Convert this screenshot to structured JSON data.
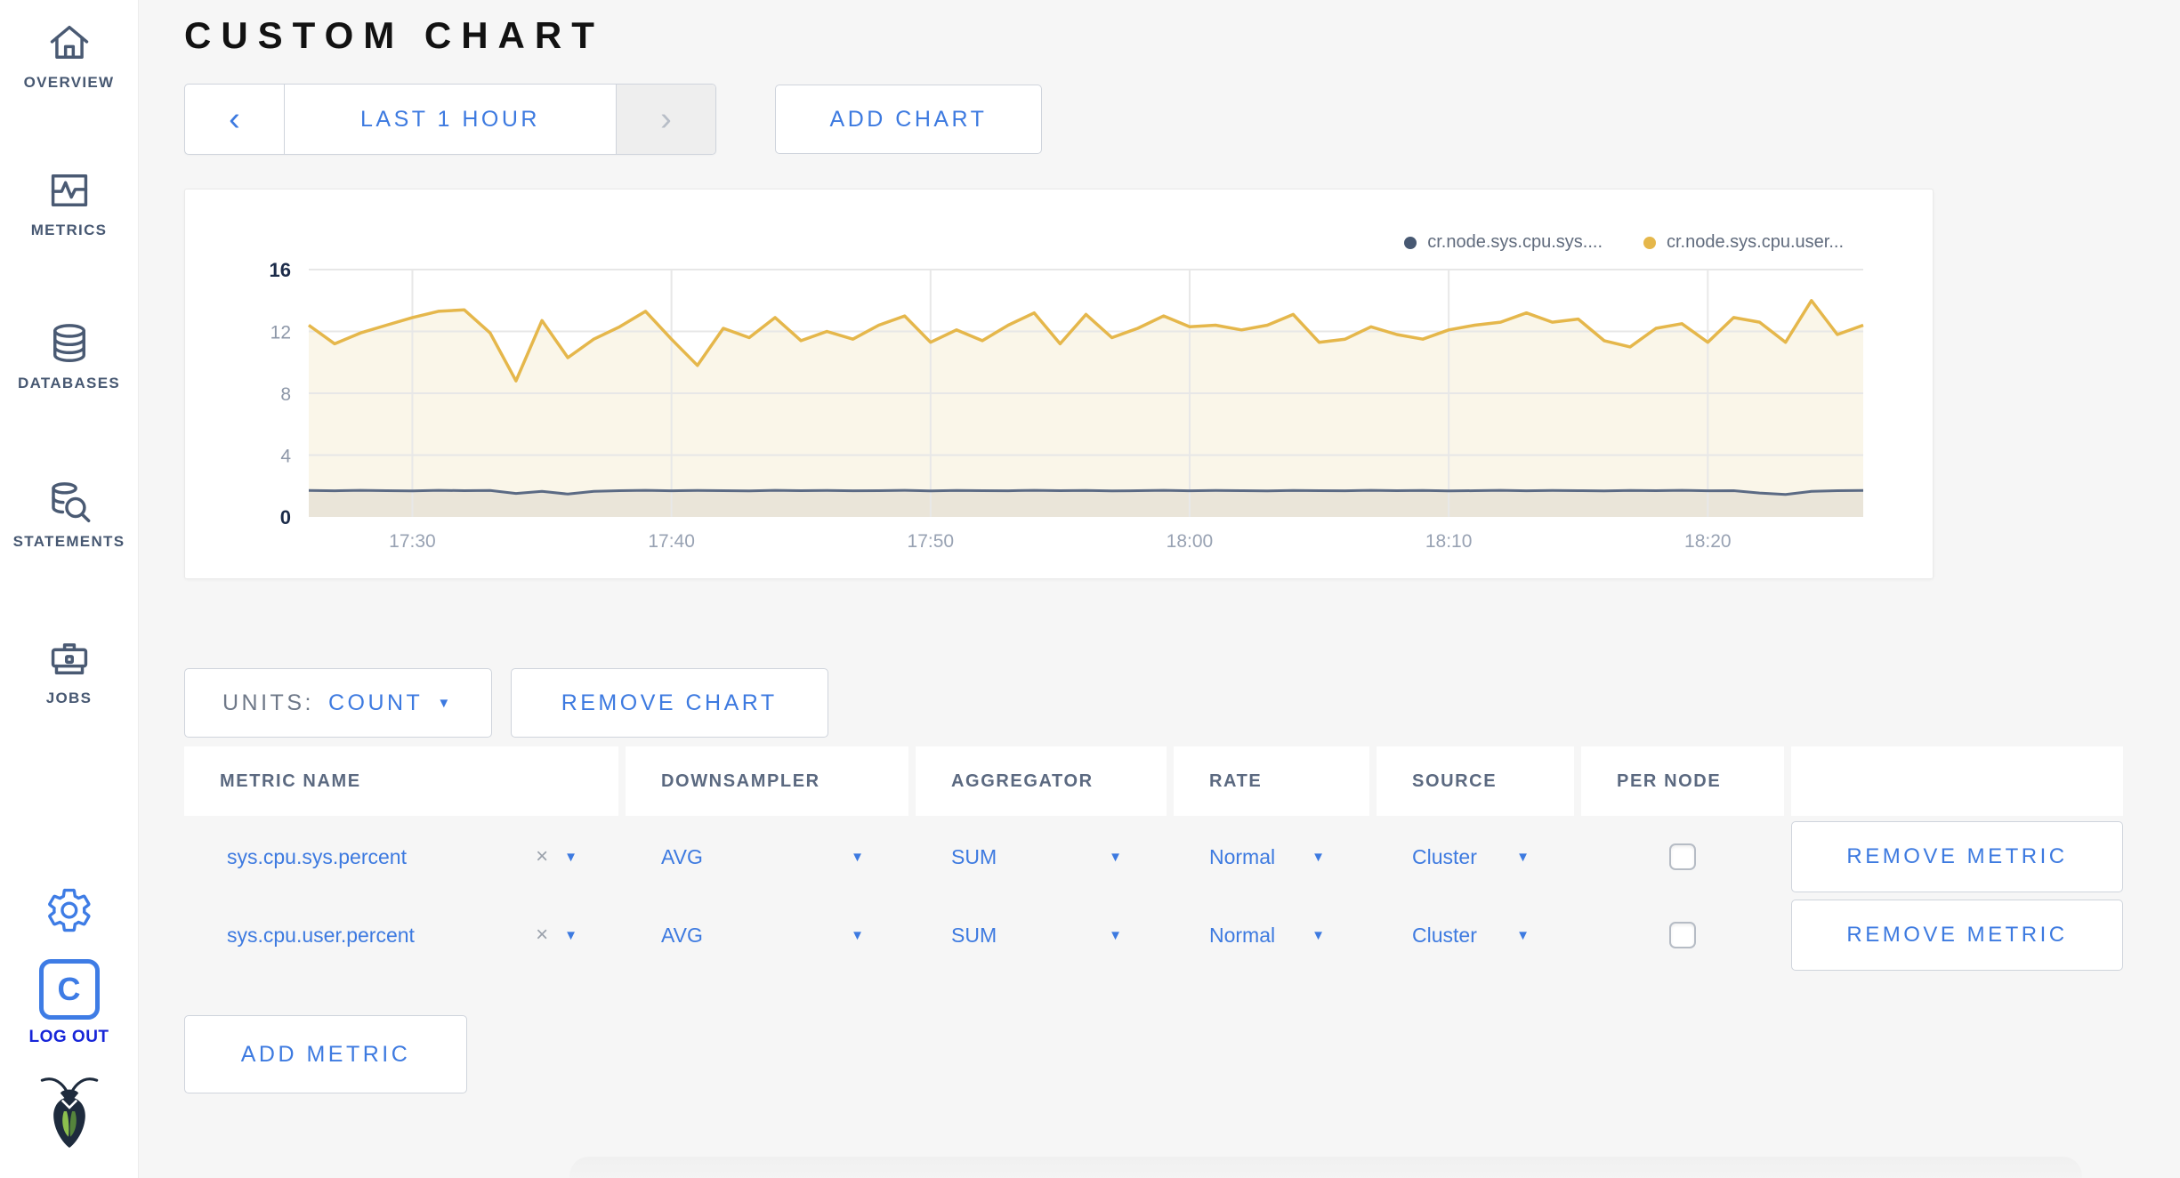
{
  "colors": {
    "accent_blue": "#3d7ae0",
    "logout_blue": "#1725d8",
    "sidebar_slate": "#475872",
    "series_user_yellow": "#e5b74b",
    "series_sys_navy": "#475872",
    "page_background": "#f6f6f6"
  },
  "icons": {
    "caret": "▼",
    "close": "×",
    "chev_left": "‹",
    "chev_right": "›"
  },
  "sidebar": {
    "items": [
      {
        "label": "OVERVIEW",
        "icon": "home-icon"
      },
      {
        "label": "METRICS",
        "icon": "metrics-graph-icon"
      },
      {
        "label": "DATABASES",
        "icon": "database-icon"
      },
      {
        "label": "STATEMENTS",
        "icon": "database-search-icon"
      },
      {
        "label": "JOBS",
        "icon": "briefcase-icon"
      }
    ],
    "logout_label": "LOG OUT"
  },
  "header": {
    "title": "CUSTOM CHART"
  },
  "toolbar": {
    "time_range_label": "LAST 1 HOUR",
    "add_chart_label": "ADD CHART"
  },
  "chart_card": {
    "legend": [
      {
        "label": "cr.node.sys.cpu.sys....",
        "color": "#475872"
      },
      {
        "label": "cr.node.sys.cpu.user...",
        "color": "#e5b74b"
      }
    ]
  },
  "chart_data": {
    "type": "area",
    "title": "",
    "xlabel": "",
    "ylabel": "",
    "ylim": [
      0,
      16
    ],
    "y_ticks": [
      0,
      4,
      8,
      12,
      16
    ],
    "x_ticks": [
      "17:30",
      "17:40",
      "17:50",
      "18:00",
      "18:10",
      "18:20"
    ],
    "tick_minutes": [
      4,
      14,
      24,
      34,
      44,
      54
    ],
    "total_minutes": 60,
    "grid": "on",
    "legend_position": "top-right",
    "series": [
      {
        "name": "cr.node.sys.cpu.sys....",
        "color": "#5b6a84",
        "fill": "#eae5d9",
        "values": [
          1.71,
          1.69,
          1.72,
          1.7,
          1.68,
          1.72,
          1.7,
          1.71,
          1.52,
          1.66,
          1.48,
          1.65,
          1.7,
          1.72,
          1.69,
          1.71,
          1.7,
          1.68,
          1.72,
          1.7,
          1.71,
          1.69,
          1.7,
          1.72,
          1.68,
          1.71,
          1.7,
          1.69,
          1.72,
          1.7,
          1.71,
          1.68,
          1.7,
          1.72,
          1.69,
          1.71,
          1.7,
          1.68,
          1.71,
          1.7,
          1.69,
          1.72,
          1.7,
          1.71,
          1.68,
          1.7,
          1.72,
          1.69,
          1.71,
          1.7,
          1.68,
          1.71,
          1.7,
          1.72,
          1.69,
          1.7,
          1.55,
          1.45,
          1.65,
          1.7,
          1.71
        ]
      },
      {
        "name": "cr.node.sys.cpu.user...",
        "color": "#e5b74b",
        "fill": "#faf6e9",
        "values": [
          12.4,
          11.2,
          11.9,
          12.4,
          12.9,
          13.3,
          13.4,
          11.9,
          8.8,
          12.7,
          10.3,
          11.5,
          12.3,
          13.3,
          11.5,
          9.8,
          12.2,
          11.6,
          12.9,
          11.4,
          12.0,
          11.5,
          12.4,
          13.0,
          11.3,
          12.1,
          11.4,
          12.4,
          13.2,
          11.2,
          13.1,
          11.6,
          12.2,
          13.0,
          12.3,
          12.4,
          12.1,
          12.4,
          13.1,
          11.3,
          11.5,
          12.3,
          11.8,
          11.5,
          12.1,
          12.4,
          12.6,
          13.2,
          12.6,
          12.8,
          11.4,
          11.0,
          12.2,
          12.5,
          11.3,
          12.9,
          12.6,
          11.3,
          14.0,
          11.8,
          12.4
        ]
      }
    ]
  },
  "chart_controls": {
    "units_label": "UNITS:",
    "units_value": "COUNT",
    "remove_chart_label": "REMOVE CHART"
  },
  "metric_table": {
    "columns": [
      "METRIC NAME",
      "DOWNSAMPLER",
      "AGGREGATOR",
      "RATE",
      "SOURCE",
      "PER NODE",
      ""
    ],
    "rows": [
      {
        "metric_name": "sys.cpu.sys.percent",
        "downsampler": "AVG",
        "aggregator": "SUM",
        "rate": "Normal",
        "source": "Cluster",
        "per_node_checked": false,
        "remove_label": "REMOVE METRIC"
      },
      {
        "metric_name": "sys.cpu.user.percent",
        "downsampler": "AVG",
        "aggregator": "SUM",
        "rate": "Normal",
        "source": "Cluster",
        "per_node_checked": false,
        "remove_label": "REMOVE METRIC"
      }
    ],
    "add_metric_label": "ADD METRIC"
  }
}
